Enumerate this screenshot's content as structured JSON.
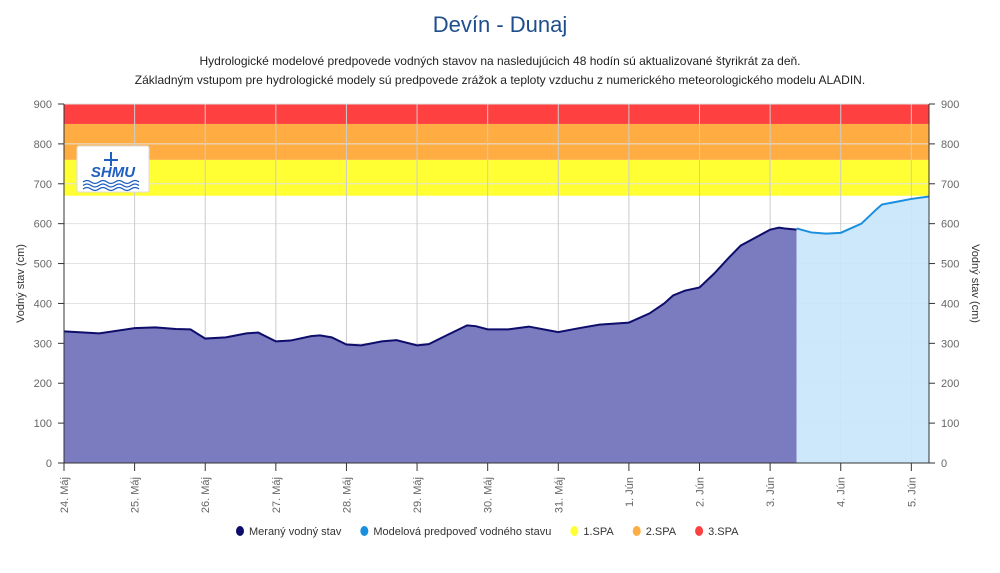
{
  "chart_data": {
    "type": "area",
    "title": "Devín - Dunaj",
    "subtitle": [
      "Hydrologické modelové predpovede vodných stavov na nasledujúcich 48 hodín sú aktualizované štyrikrát za deň.",
      "Základným vstupom pre hydrologické modely sú predpovede zrážok a teploty vzduchu z numerického meteorologického modelu ALADIN."
    ],
    "ylabel": "Vodný stav (cm)",
    "ylabel_right": "Vodný stav (cm)",
    "ylim": [
      0,
      900
    ],
    "yticks": [
      0,
      100,
      200,
      300,
      400,
      500,
      600,
      700,
      800,
      900
    ],
    "xlim": [
      "24.05 00:00",
      "05.06 06:00"
    ],
    "xticks": [
      {
        "label": "24. Máj",
        "x": "24.05 00:00"
      },
      {
        "label": "25. Máj",
        "x": "25.05 00:00"
      },
      {
        "label": "26. Máj",
        "x": "26.05 00:00"
      },
      {
        "label": "27. Máj",
        "x": "27.05 00:00"
      },
      {
        "label": "28. Máj",
        "x": "28.05 00:00"
      },
      {
        "label": "29. Máj",
        "x": "29.05 00:00"
      },
      {
        "label": "30. Máj",
        "x": "30.05 00:00"
      },
      {
        "label": "31. Máj",
        "x": "31.05 00:00"
      },
      {
        "label": "1. Jún",
        "x": "01.06 00:00"
      },
      {
        "label": "2. Jún",
        "x": "02.06 00:00"
      },
      {
        "label": "3. Jún",
        "x": "03.06 00:00"
      },
      {
        "label": "4. Jún",
        "x": "04.06 00:00"
      },
      {
        "label": "5. Jún",
        "x": "05.06 00:00"
      }
    ],
    "grid": true,
    "legend_placement": "bottom",
    "bands": [
      {
        "name": "1.SPA",
        "from": 670,
        "to": 760,
        "color": "#ffff33"
      },
      {
        "name": "2.SPA",
        "from": 760,
        "to": 850,
        "color": "#ffad42"
      },
      {
        "name": "3.SPA",
        "from": 850,
        "to": 900,
        "color": "#ff4040"
      }
    ],
    "series": [
      {
        "name": "Meraný vodný stav",
        "color": "#0d0d6b",
        "fill": "#7b7bbf",
        "points": [
          [
            "24.05 00:00",
            330
          ],
          [
            "24.05 12:00",
            325
          ],
          [
            "25.05 00:00",
            338
          ],
          [
            "25.05 07:00",
            340
          ],
          [
            "25.05 14:00",
            336
          ],
          [
            "25.05 19:00",
            335
          ],
          [
            "26.05 00:00",
            312
          ],
          [
            "26.05 07:00",
            315
          ],
          [
            "26.05 14:00",
            325
          ],
          [
            "26.05 18:00",
            327
          ],
          [
            "27.05 00:00",
            305
          ],
          [
            "27.05 05:00",
            307
          ],
          [
            "27.05 12:00",
            318
          ],
          [
            "27.05 15:00",
            320
          ],
          [
            "27.05 19:00",
            315
          ],
          [
            "28.05 00:00",
            297
          ],
          [
            "28.05 05:00",
            295
          ],
          [
            "28.05 12:00",
            305
          ],
          [
            "28.05 17:00",
            308
          ],
          [
            "29.05 00:00",
            295
          ],
          [
            "29.05 04:00",
            298
          ],
          [
            "29.05 10:00",
            320
          ],
          [
            "29.05 17:00",
            345
          ],
          [
            "29.05 20:00",
            343
          ],
          [
            "30.05 00:00",
            335
          ],
          [
            "30.05 07:00",
            335
          ],
          [
            "30.05 14:00",
            342
          ],
          [
            "30.05 19:00",
            335
          ],
          [
            "31.05 00:00",
            328
          ],
          [
            "31.05 07:00",
            338
          ],
          [
            "31.05 14:00",
            347
          ],
          [
            "01.06 00:00",
            352
          ],
          [
            "01.06 07:00",
            375
          ],
          [
            "01.06 12:00",
            400
          ],
          [
            "01.06 15:00",
            420
          ],
          [
            "01.06 19:00",
            432
          ],
          [
            "02.06 00:00",
            440
          ],
          [
            "02.06 05:00",
            475
          ],
          [
            "02.06 10:00",
            515
          ],
          [
            "02.06 14:00",
            545
          ],
          [
            "02.06 19:00",
            565
          ],
          [
            "03.06 00:00",
            585
          ],
          [
            "03.06 03:00",
            590
          ],
          [
            "03.06 05:00",
            588
          ],
          [
            "03.06 09:00",
            585
          ]
        ]
      },
      {
        "name": "Modelová predpoveď vodného stavu",
        "color": "#1a8fe0",
        "fill": "#c9e6fb",
        "points": [
          [
            "03.06 09:00",
            588
          ],
          [
            "03.06 14:00",
            578
          ],
          [
            "03.06 19:00",
            575
          ],
          [
            "04.06 00:00",
            577
          ],
          [
            "04.06 07:00",
            600
          ],
          [
            "04.06 12:00",
            635
          ],
          [
            "04.06 14:00",
            648
          ],
          [
            "04.06 19:00",
            655
          ],
          [
            "05.06 00:00",
            662
          ],
          [
            "05.06 06:00",
            668
          ]
        ]
      }
    ],
    "legend": [
      {
        "label": "Meraný vodný stav",
        "color": "#0d0d6b"
      },
      {
        "label": "Modelová predpoveď vodného stavu",
        "color": "#1a8fe0"
      },
      {
        "label": "1.SPA",
        "color": "#ffff33"
      },
      {
        "label": "2.SPA",
        "color": "#ffad42"
      },
      {
        "label": "3.SPA",
        "color": "#ff4040"
      }
    ],
    "logo": "SHMU"
  }
}
